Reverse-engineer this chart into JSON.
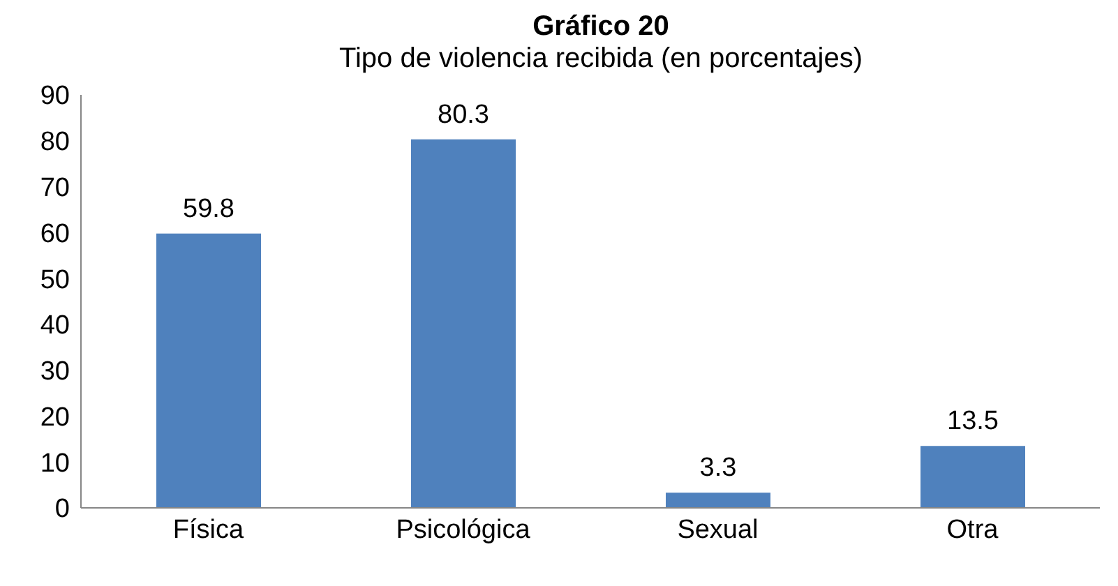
{
  "chart_data": {
    "type": "bar",
    "title": "Gráfico 20",
    "subtitle": "Tipo de violencia recibida (en porcentajes)",
    "categories": [
      "Física",
      "Psicológica",
      "Sexual",
      "Otra"
    ],
    "values": [
      59.8,
      80.3,
      3.3,
      13.5
    ],
    "color": "#4f81bd",
    "ylim": [
      0,
      90
    ],
    "yticks": [
      0,
      10,
      20,
      30,
      40,
      50,
      60,
      70,
      80,
      90
    ],
    "grid": false,
    "data_labels": true
  }
}
